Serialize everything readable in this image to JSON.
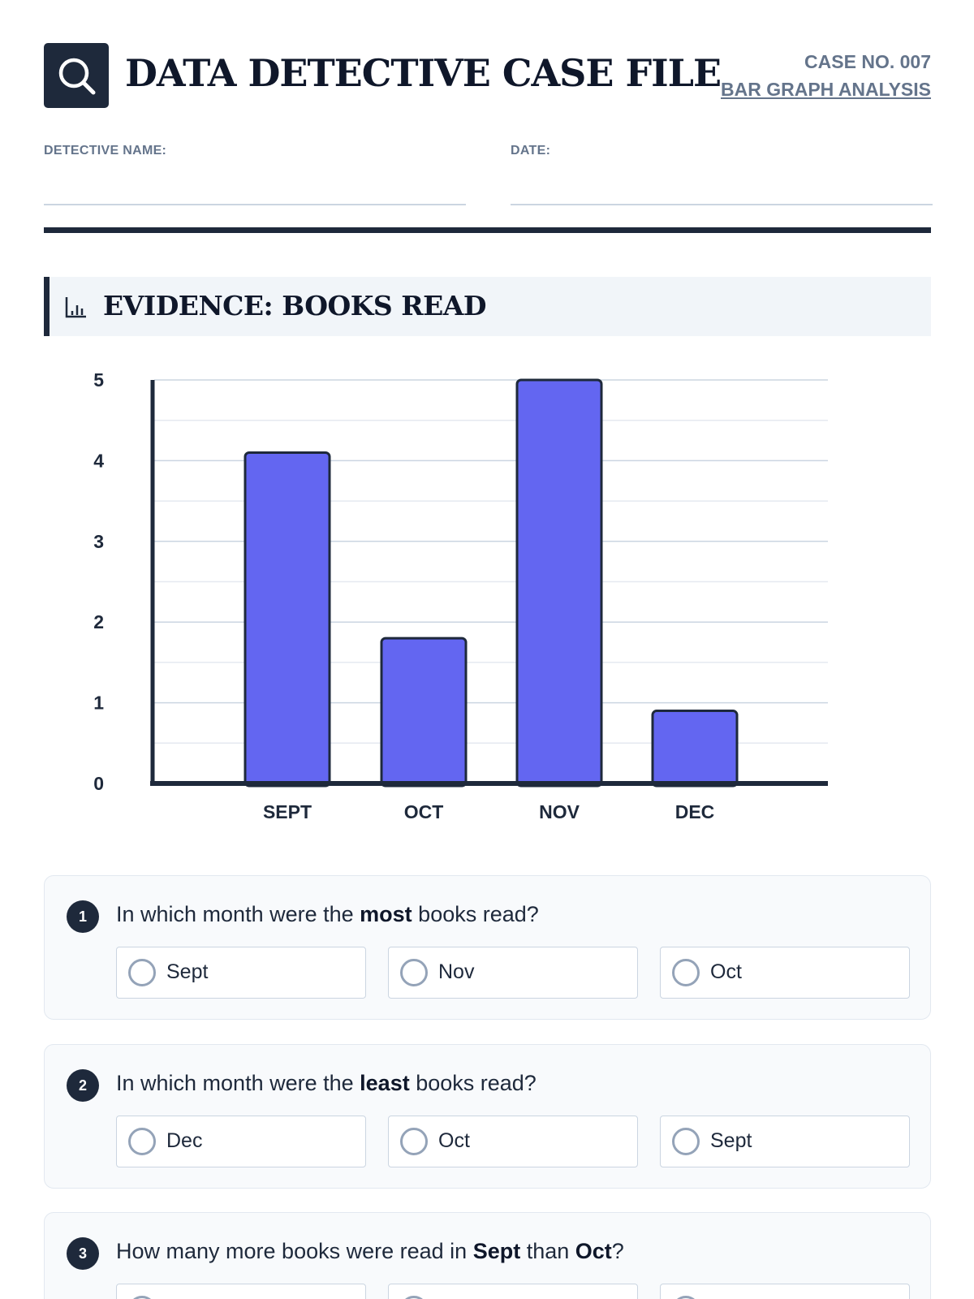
{
  "header": {
    "title": "DATA DETECTIVE CASE FILE",
    "case_number": "CASE NO. 007",
    "case_subtitle": "BAR GRAPH ANALYSIS",
    "logo_icon": "magnifier-icon"
  },
  "fields": {
    "detective_label": "DETECTIVE NAME:",
    "date_label": "DATE:"
  },
  "section": {
    "title": "EVIDENCE: BOOKS READ",
    "icon": "bar-chart-icon"
  },
  "chart_data": {
    "type": "bar",
    "categories": [
      "SEPT",
      "OCT",
      "NOV",
      "DEC"
    ],
    "values": [
      4.1,
      1.8,
      5.0,
      0.9
    ],
    "title": "",
    "xlabel": "",
    "ylabel": "",
    "ylim": [
      0,
      5
    ],
    "yticks": [
      0,
      1,
      2,
      3,
      4,
      5
    ],
    "grid": true,
    "bar_color": "#6366f1"
  },
  "questions": [
    {
      "number": "1",
      "text_before": "In which month were the ",
      "emph1": "most",
      "text_middle": " books read?",
      "emph2": "",
      "text_after": "",
      "options": [
        "Sept",
        "Nov",
        "Oct"
      ]
    },
    {
      "number": "2",
      "text_before": "In which month were the ",
      "emph1": "least",
      "text_middle": " books read?",
      "emph2": "",
      "text_after": "",
      "options": [
        "Dec",
        "Oct",
        "Sept"
      ]
    },
    {
      "number": "3",
      "text_before": "How many more books were read in ",
      "emph1": "Sept",
      "text_middle": " than ",
      "emph2": "Oct",
      "text_after": "?",
      "options": [
        "",
        "",
        ""
      ]
    }
  ]
}
